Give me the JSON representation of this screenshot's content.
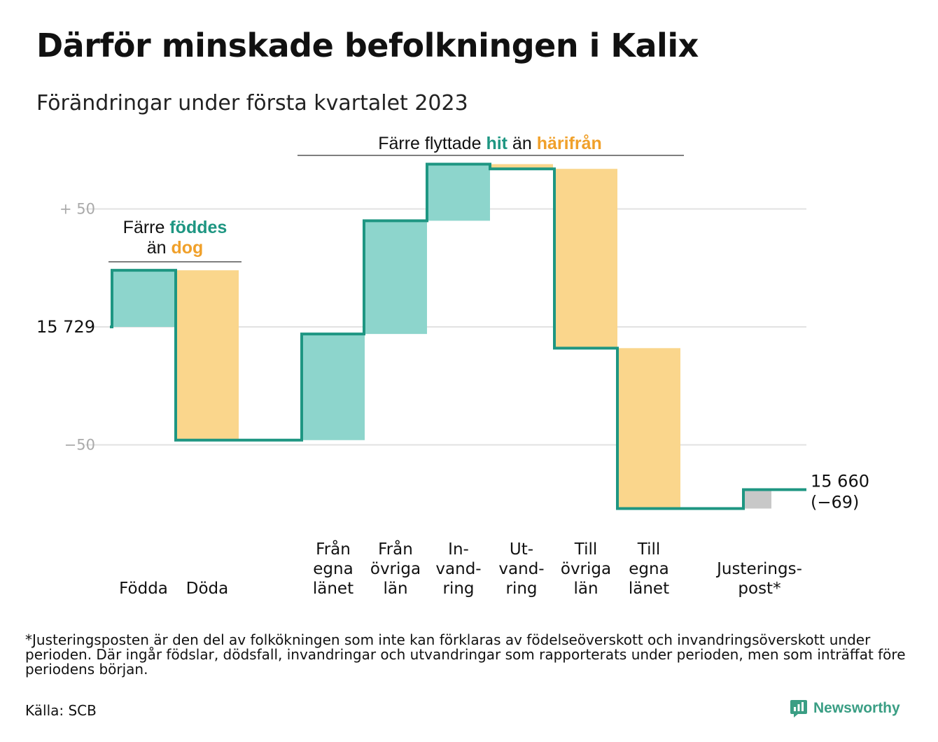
{
  "title": "Därför minskade befolkningen i Kalix",
  "subtitle": "Förändringar under första kvartalet 2023",
  "footnote": "*Justeringsposten är den del av folkökningen som inte kan förklaras av födelseöverskott och invandringsöverskott under perioden. Där ingår födslar, dödsfall, invandringar och utvandringar som rapporterats under perioden, men som inträffat före periodens början.",
  "source": "Källa: SCB",
  "brand": "Newsworthy",
  "colors": {
    "increase": "#8dd5cc",
    "decrease": "#fad68c",
    "adjustment": "#c8c8c8",
    "line": "#1e9682",
    "teal_text": "#1e9682",
    "orange_text": "#f0a02a",
    "grid": "#e2e2e2",
    "tick": "#aaaaaa"
  },
  "chart_data": {
    "type": "waterfall",
    "start_value": 15729,
    "start_label": "15 729",
    "end_label": "15 660",
    "end_change_label": "(−69)",
    "y_ticks": [
      {
        "value": 50,
        "label": "+ 50",
        "grid": true
      },
      {
        "value": 0,
        "label": "",
        "grid": true
      },
      {
        "value": -50,
        "label": "−50",
        "grid": true
      }
    ],
    "ylim": [
      -80,
      70
    ],
    "steps": [
      {
        "category": "Födda",
        "label_lines": [
          "Födda"
        ],
        "value": 24,
        "kind": "increase"
      },
      {
        "category": "Döda",
        "label_lines": [
          "Döda"
        ],
        "value": -72,
        "kind": "decrease"
      },
      {
        "category": "Från egna länet",
        "label_lines": [
          "Från",
          "egna",
          "länet"
        ],
        "value": 45,
        "kind": "increase"
      },
      {
        "category": "Från övriga län",
        "label_lines": [
          "Från",
          "övriga",
          "län"
        ],
        "value": 48,
        "kind": "increase"
      },
      {
        "category": "In-vand-ring",
        "label_lines": [
          "In-",
          "vand-",
          "ring"
        ],
        "value": 24,
        "kind": "increase"
      },
      {
        "category": "Ut-vand-ring",
        "label_lines": [
          "Ut-",
          "vand-",
          "ring"
        ],
        "value": -2,
        "kind": "decrease"
      },
      {
        "category": "Till övriga län",
        "label_lines": [
          "Till",
          "övriga",
          "län"
        ],
        "value": -76,
        "kind": "decrease"
      },
      {
        "category": "Till egna länet",
        "label_lines": [
          "Till",
          "egna",
          "länet"
        ],
        "value": -68,
        "kind": "decrease"
      },
      {
        "category": "Justerings-post*",
        "label_lines": [
          "Justerings-",
          "post*"
        ],
        "value": 8,
        "kind": "adjustment"
      }
    ],
    "annotations": [
      {
        "id": "births",
        "line1": [
          {
            "text": "Färre ",
            "style": "plain"
          },
          {
            "text": "föddes",
            "style": "teal"
          }
        ],
        "line2": [
          {
            "text": "än ",
            "style": "plain"
          },
          {
            "text": "dog",
            "style": "orange"
          }
        ]
      },
      {
        "id": "moves",
        "line1": [
          {
            "text": "Färre flyttade ",
            "style": "plain"
          },
          {
            "text": "hit",
            "style": "teal"
          },
          {
            "text": " än ",
            "style": "plain"
          },
          {
            "text": "härifrån",
            "style": "orange"
          }
        ]
      }
    ]
  }
}
